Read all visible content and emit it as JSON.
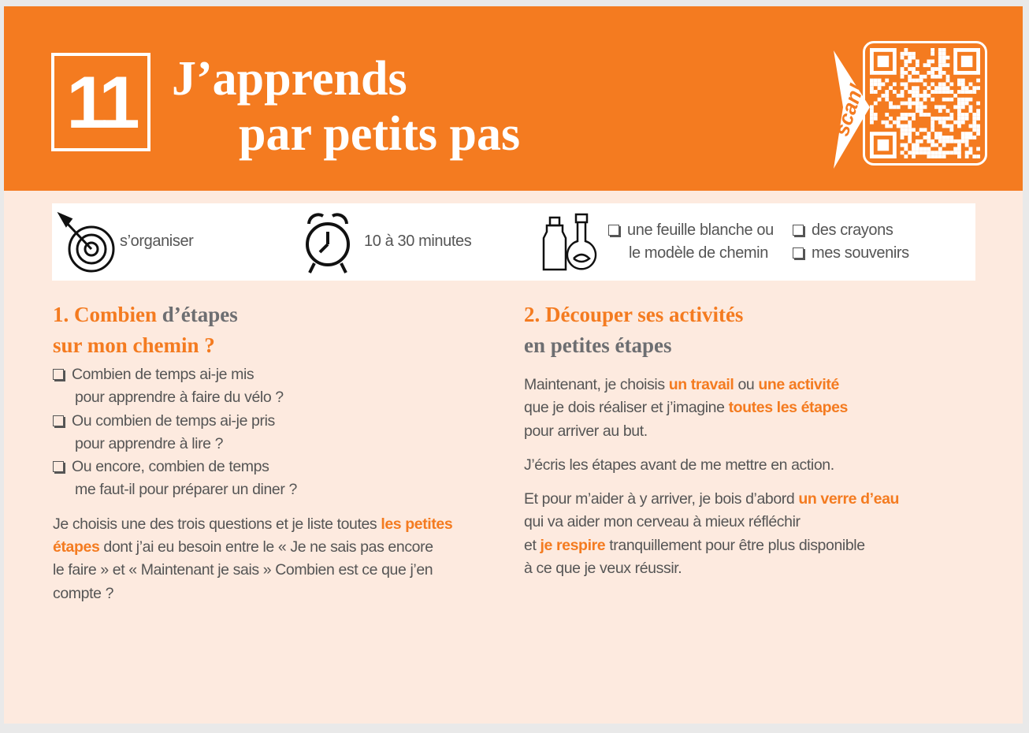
{
  "header": {
    "number": "11",
    "title_lines": [
      "J’apprends",
      "par petits pas"
    ],
    "scan": "scan!"
  },
  "info": {
    "goal": "s’organiser",
    "duration": "10 à 30 minutes",
    "materials": [
      [
        "une feuille blanche ou",
        "le modèle de chemin"
      ],
      [
        "des crayons"
      ],
      [
        "mes souvenirs"
      ]
    ]
  },
  "sections": [
    {
      "title_lines": [
        [
          {
            "text": "1. Combien",
            "orange": true
          },
          {
            "text": "d’étapes",
            "orange": false
          }
        ],
        [
          {
            "text": "sur mon chemin ?",
            "orange": true
          }
        ]
      ],
      "checklist": [
        [
          "Combien de temps ai-je mis",
          "pour apprendre à faire du vélo ?"
        ],
        [
          "Ou combien de temps ai-je pris",
          "pour apprendre à lire ?"
        ],
        [
          "Ou encore, combien de temps",
          "me faut-il pour préparer un diner ?"
        ]
      ],
      "paragraphs": [
        [
          [
            {
              "text": "Je choisis une des trois questions et je liste toutes",
              "orange": false
            },
            {
              "text": "les petites",
              "orange": true
            }
          ],
          [
            {
              "text": "étapes",
              "orange": true
            },
            {
              "text": "dont j’ai eu besoin entre le « Je ne sais pas encore",
              "orange": false
            }
          ],
          [
            {
              "text": "le faire » et « Maintenant je sais » Combien est ce que j’en",
              "orange": false
            }
          ],
          [
            {
              "text": "compte ?",
              "orange": false
            }
          ]
        ]
      ]
    },
    {
      "title_lines": [
        [
          {
            "text": "2. Découper ses activités",
            "orange": true
          }
        ],
        [
          {
            "text": "en petites étapes",
            "orange": false
          }
        ]
      ],
      "checklist": [],
      "paragraphs": [
        [
          [
            {
              "text": "Maintenant, je choisis",
              "orange": false
            },
            {
              "text": "un travail",
              "orange": true
            },
            {
              "text": "ou",
              "orange": false
            },
            {
              "text": "une activité",
              "orange": true
            }
          ],
          [
            {
              "text": "que je dois réaliser et j’imagine",
              "orange": false
            },
            {
              "text": "toutes les étapes",
              "orange": true
            }
          ],
          [
            {
              "text": "pour arriver au but.",
              "orange": false
            }
          ]
        ],
        [
          [
            {
              "text": "J’écris les étapes avant de me mettre en action.",
              "orange": false
            }
          ]
        ],
        [
          [
            {
              "text": "Et pour m’aider à y arriver, je bois d’abord",
              "orange": false
            },
            {
              "text": "un verre d’eau",
              "orange": true
            }
          ],
          [
            {
              "text": "qui va aider mon cerveau à mieux réfléchir",
              "orange": false
            }
          ],
          [
            {
              "text": "et",
              "orange": false
            },
            {
              "text": "je respire",
              "orange": true
            },
            {
              "text": "tranquillement pour être plus disponible",
              "orange": false
            }
          ],
          [
            {
              "text": "à ce que je veux réussir.",
              "orange": false
            }
          ]
        ]
      ]
    }
  ]
}
